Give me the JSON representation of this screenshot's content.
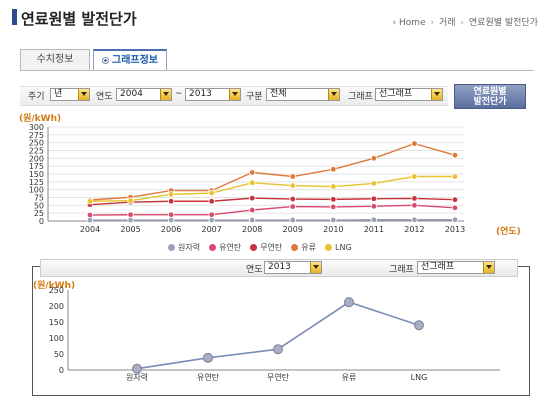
{
  "header": {
    "title": "연료원별 발전단가",
    "breadcrumb": [
      "Home",
      "거래",
      "연료원별 발전단가"
    ]
  },
  "tabs": [
    {
      "label": "수치정보",
      "active": false
    },
    {
      "label": "그래프정보",
      "active": true
    }
  ],
  "filters": {
    "period_label": "주기",
    "period_value": "년",
    "year_label": "연도",
    "year_from": "2004",
    "range_sep": "~",
    "year_to": "2013",
    "category_label": "구분",
    "category_value": "전체",
    "graph_label": "그래프",
    "graph_value": "선그래프",
    "view_button": "연료원별\n발전단가"
  },
  "colors": {
    "accent": "#2a4d8f",
    "unit": "#d47a10",
    "nuclear": "#9aa0b8",
    "bituminous": "#d84a6e",
    "anthracite": "#c8323a",
    "oil": "#e0783a",
    "lng": "#e8c22c",
    "bottom_line": "#7a8cb8"
  },
  "top_chart_units": {
    "y": "(원/kWh)",
    "x": "(연도)"
  },
  "bottom_chart_units": {
    "y": "(원/kWh)"
  },
  "bottom_filters": {
    "year_label": "연도",
    "year_value": "2013",
    "graph_label": "그래프",
    "graph_value": "선그래프"
  },
  "chart_data": [
    {
      "type": "line",
      "x": [
        "2004",
        "2005",
        "2006",
        "2007",
        "2008",
        "2009",
        "2010",
        "2011",
        "2012",
        "2013"
      ],
      "ylim": [
        0,
        300
      ],
      "yticks": [
        0,
        25,
        50,
        75,
        100,
        125,
        150,
        175,
        200,
        225,
        250,
        275,
        300
      ],
      "ylabel": "(원/kWh)",
      "xlabel": "(연도)",
      "grid": true,
      "legend": "bottom",
      "series": [
        {
          "name": "원자력",
          "color": "#9aa0b8",
          "values": [
            3,
            3,
            3,
            3,
            3,
            3,
            3,
            4,
            4,
            4
          ]
        },
        {
          "name": "유연탄",
          "color": "#d84a6e",
          "values": [
            19,
            20,
            20,
            20,
            35,
            46,
            45,
            47,
            50,
            42
          ]
        },
        {
          "name": "무연탄",
          "color": "#c8323a",
          "values": [
            52,
            60,
            63,
            63,
            73,
            70,
            69,
            71,
            72,
            68
          ]
        },
        {
          "name": "유류",
          "color": "#e0783a",
          "values": [
            67,
            76,
            97,
            97,
            155,
            142,
            165,
            200,
            247,
            210
          ]
        },
        {
          "name": "LNG",
          "color": "#e8c22c",
          "values": [
            63,
            65,
            85,
            89,
            122,
            113,
            110,
            120,
            142,
            142
          ]
        }
      ]
    },
    {
      "type": "line",
      "categories": [
        "원자력",
        "유연탄",
        "무연탄",
        "유류",
        "LNG"
      ],
      "values": [
        4,
        38,
        65,
        212,
        140
      ],
      "ylim": [
        0,
        250
      ],
      "yticks": [
        0,
        50,
        100,
        150,
        200,
        250
      ],
      "ylabel": "(원/kWh)",
      "grid": false
    }
  ]
}
